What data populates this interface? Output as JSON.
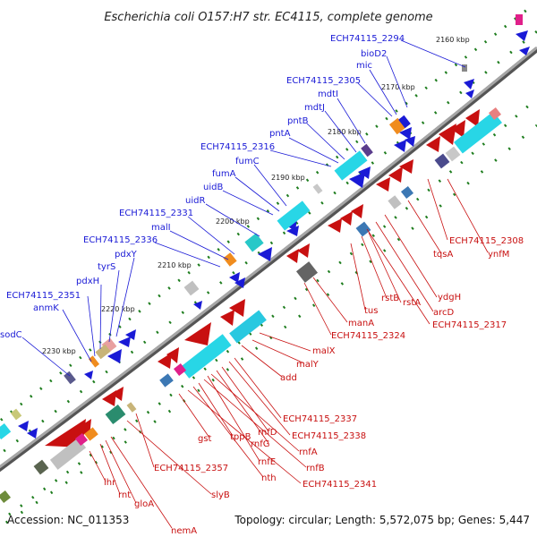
{
  "title": "Escherichia coli O157:H7 str. EC4115, complete genome",
  "footer": {
    "accession": "Accession: NC_011353",
    "summary": "Topology: circular; Length: 5,572,075 bp; Genes: 5,447"
  },
  "colors": {
    "forward": "#1a1ad6",
    "reverse": "#c81010",
    "backbone": "#8c8c8c",
    "gc_skew": "#1e7d1e"
  },
  "ticks": [
    "2160 kbp",
    "2170 kbp",
    "2180 kbp",
    "2190 kbp",
    "2200 kbp",
    "2210 kbp",
    "2220 kbp",
    "2230 kbp"
  ],
  "blue_labels": [
    "ECH74115_2294",
    "bioD2",
    "mic",
    "ECH74115_2305",
    "mdtI",
    "mdtJ",
    "pntB",
    "pntA",
    "ECH74115_2316",
    "fumC",
    "fumA",
    "uidB",
    "uidR",
    "ECH74115_2331",
    "malI",
    "ECH74115_2336",
    "pdxY",
    "tyrS",
    "pdxH",
    "ECH74115_2351",
    "anmK",
    "sodC"
  ],
  "red_labels": [
    "ECH74115_2308",
    "ynfM",
    "tqsA",
    "ydgH",
    "arcD",
    "ECH74115_2317",
    "rstB",
    "rstA",
    "tus",
    "manA",
    "ECH74115_2324",
    "malX",
    "malY",
    "add",
    "ECH74115_2337",
    "ECH74115_2338",
    "rnfD",
    "rnfG",
    "rnfA",
    "rnfE",
    "rnfB",
    "tppB",
    "gst",
    "nth",
    "ECH74115_2341",
    "ECH74115_2357",
    "slyB",
    "lhr",
    "rnt",
    "gloA",
    "nemA"
  ]
}
